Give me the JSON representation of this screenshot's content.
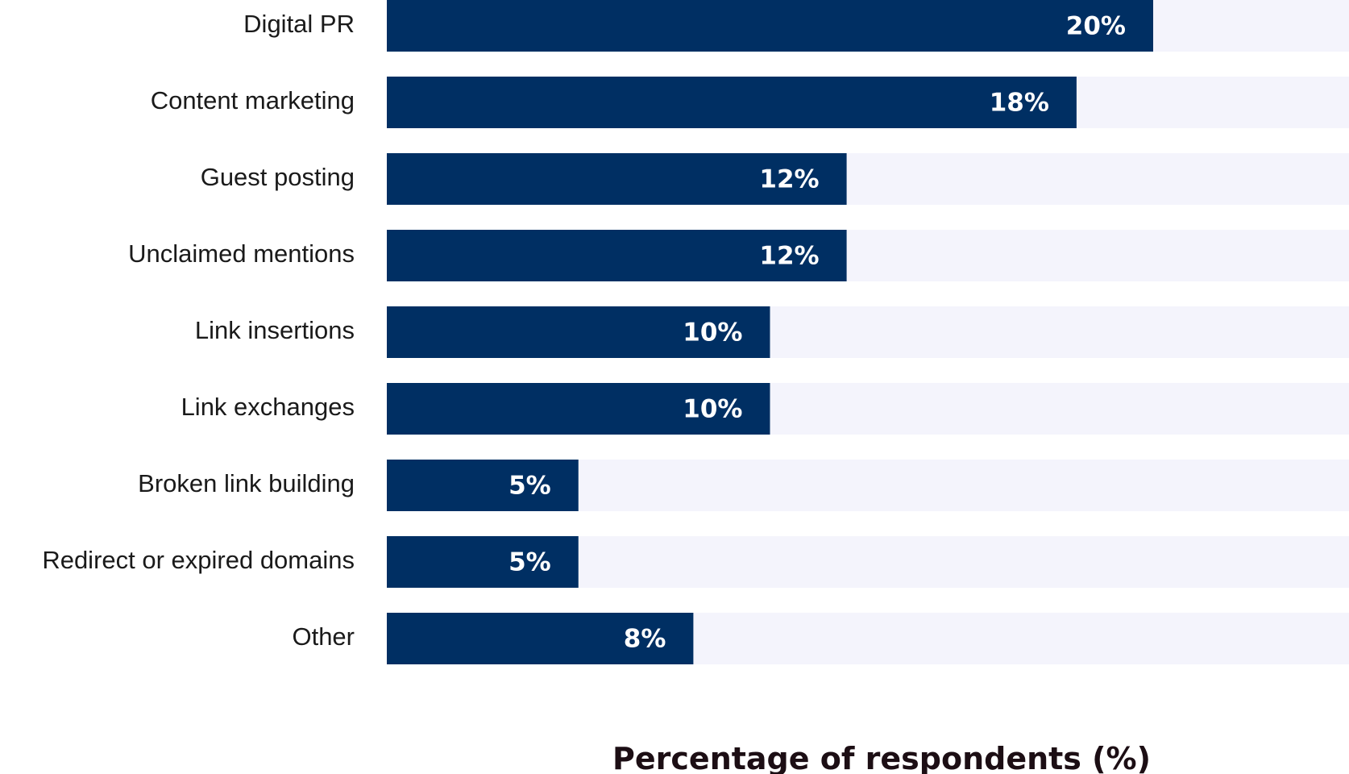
{
  "chart_data": {
    "type": "bar",
    "orientation": "horizontal",
    "categories": [
      "Digital PR",
      "Content marketing",
      "Guest posting",
      "Unclaimed mentions",
      "Link insertions",
      "Link exchanges",
      "Broken link building",
      "Redirect or expired domains",
      "Other"
    ],
    "values": [
      20,
      18,
      12,
      12,
      10,
      10,
      5,
      5,
      8
    ],
    "value_labels": [
      "20%",
      "18%",
      "12%",
      "12%",
      "10%",
      "10%",
      "5%",
      "5%",
      "8%"
    ],
    "title": "",
    "xlabel": "Percentage of respondents (%)",
    "ylabel": "",
    "xlim": [
      0,
      25
    ],
    "grid": false,
    "legend": "none",
    "colors": {
      "bar": "#002f63",
      "track": "#f4f4fc",
      "category_text": "#1a1a1a",
      "value_text": "#ffffff",
      "axis_title": "#1c0e14"
    }
  }
}
